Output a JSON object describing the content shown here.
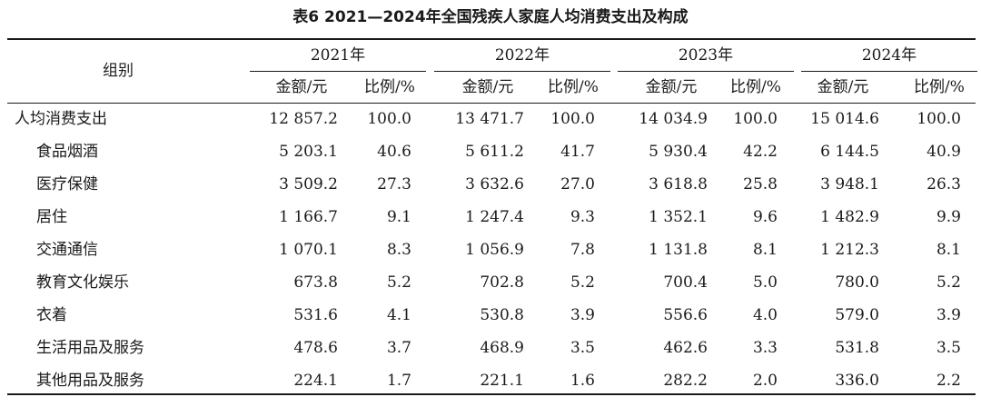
{
  "table": {
    "title": "表6  2021—2024年全国残疾人家庭人均消费支出及构成",
    "group_header": "组别",
    "years": [
      "2021年",
      "2022年",
      "2023年",
      "2024年"
    ],
    "sub_headers": [
      "金额/元",
      "比例/%"
    ],
    "rows": [
      {
        "label": "人均消费支出",
        "cells": [
          "12 857.2",
          "100.0",
          "13 471.7",
          "100.0",
          "14 034.9",
          "100.0",
          "15 014.6",
          "100.0"
        ]
      },
      {
        "label": "食品烟酒",
        "cells": [
          "5 203.1",
          "40.6",
          "5 611.2",
          "41.7",
          "5 930.4",
          "42.2",
          "6 144.5",
          "40.9"
        ]
      },
      {
        "label": "医疗保健",
        "cells": [
          "3 509.2",
          "27.3",
          "3 632.6",
          "27.0",
          "3 618.8",
          "25.8",
          "3 948.1",
          "26.3"
        ]
      },
      {
        "label": "居住",
        "cells": [
          "1 166.7",
          "9.1",
          "1 247.4",
          "9.3",
          "1 352.1",
          "9.6",
          "1 482.9",
          "9.9"
        ]
      },
      {
        "label": "交通通信",
        "cells": [
          "1 070.1",
          "8.3",
          "1 056.9",
          "7.8",
          "1 131.8",
          "8.1",
          "1 212.3",
          "8.1"
        ]
      },
      {
        "label": "教育文化娱乐",
        "cells": [
          "673.8",
          "5.2",
          "702.8",
          "5.2",
          "700.4",
          "5.0",
          "780.0",
          "5.2"
        ]
      },
      {
        "label": "衣着",
        "cells": [
          "531.6",
          "4.1",
          "530.8",
          "3.9",
          "556.6",
          "4.0",
          "579.0",
          "3.9"
        ]
      },
      {
        "label": "生活用品及服务",
        "cells": [
          "478.6",
          "3.7",
          "468.9",
          "3.5",
          "462.6",
          "3.3",
          "531.8",
          "3.5"
        ]
      },
      {
        "label": "其他用品及服务",
        "cells": [
          "224.1",
          "1.7",
          "221.1",
          "1.6",
          "282.2",
          "2.0",
          "336.0",
          "2.2"
        ]
      }
    ]
  }
}
